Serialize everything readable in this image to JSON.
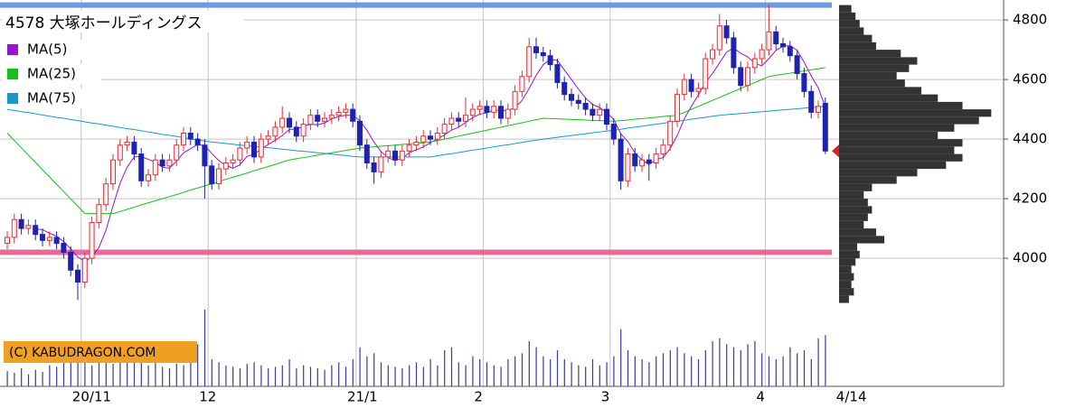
{
  "chart_data": {
    "type": "candlestick",
    "title": "4578 大塚ホールディングス",
    "copyright": "(C) KABUDRAGON.COM",
    "categories": [
      null,
      null,
      null,
      null,
      null,
      null,
      null,
      null,
      null,
      null,
      null,
      "20/11",
      null,
      null,
      null,
      null,
      null,
      null,
      null,
      null,
      null,
      null,
      null,
      null,
      null,
      null,
      null,
      null,
      null,
      "12",
      null,
      null,
      null,
      null,
      null,
      null,
      null,
      null,
      null,
      null,
      null,
      null,
      null,
      null,
      null,
      null,
      null,
      null,
      null,
      null,
      "21/1",
      null,
      null,
      null,
      null,
      null,
      null,
      null,
      null,
      null,
      null,
      null,
      null,
      null,
      null,
      null,
      null,
      null,
      "2",
      null,
      null,
      null,
      null,
      null,
      null,
      null,
      null,
      null,
      null,
      null,
      null,
      null,
      null,
      null,
      null,
      null,
      "3",
      null,
      null,
      null,
      null,
      null,
      null,
      null,
      null,
      null,
      null,
      null,
      null,
      null,
      null,
      null,
      null,
      null,
      null,
      null,
      null,
      null,
      "4",
      null,
      null,
      null,
      null,
      null,
      null,
      null,
      "4/14"
    ],
    "open": [
      4050,
      4070,
      4130,
      4100,
      4110,
      4080,
      4060,
      4070,
      4050,
      4020,
      3960,
      3920,
      4000,
      4120,
      4180,
      4250,
      4330,
      4380,
      4390,
      4350,
      4260,
      4280,
      4330,
      4310,
      4330,
      4380,
      4420,
      4400,
      4380,
      4310,
      4250,
      4300,
      4320,
      4330,
      4370,
      4390,
      4340,
      4400,
      4410,
      4440,
      4470,
      4440,
      4410,
      4450,
      4480,
      4460,
      4470,
      4480,
      4490,
      4500,
      4460,
      4380,
      4320,
      4290,
      4340,
      4360,
      4330,
      4360,
      4380,
      4390,
      4410,
      4400,
      4420,
      4450,
      4470,
      4460,
      4480,
      4500,
      4510,
      4490,
      4510,
      4470,
      4500,
      4560,
      4610,
      4710,
      4690,
      4680,
      4650,
      4590,
      4550,
      4530,
      4520,
      4500,
      4480,
      4500,
      4450,
      4400,
      4260,
      4350,
      4310,
      4330,
      4320,
      4350,
      4380,
      4460,
      4550,
      4600,
      4560,
      4570,
      4670,
      4700,
      4780,
      4740,
      4640,
      4580,
      4640,
      4670,
      4700,
      4760,
      4720,
      4710,
      4680,
      4620,
      4560,
      4490,
      4520
    ],
    "high": [
      4090,
      4150,
      4150,
      4130,
      4130,
      4100,
      4090,
      4090,
      4070,
      4040,
      3980,
      4020,
      4140,
      4200,
      4270,
      4350,
      4400,
      4410,
      4410,
      4370,
      4300,
      4350,
      4350,
      4350,
      4400,
      4440,
      4440,
      4420,
      4400,
      4330,
      4320,
      4340,
      4350,
      4390,
      4410,
      4410,
      4420,
      4430,
      4460,
      4510,
      4490,
      4460,
      4470,
      4500,
      4500,
      4490,
      4500,
      4510,
      4520,
      4520,
      4480,
      4400,
      4340,
      4360,
      4380,
      4380,
      4380,
      4400,
      4410,
      4430,
      4430,
      4440,
      4470,
      4490,
      4490,
      4540,
      4520,
      4530,
      4530,
      4530,
      4530,
      4520,
      4580,
      4630,
      4740,
      4740,
      4710,
      4700,
      4670,
      4610,
      4570,
      4550,
      4540,
      4520,
      4520,
      4520,
      4470,
      4420,
      4370,
      4370,
      4350,
      4350,
      4370,
      4400,
      4480,
      4570,
      4620,
      4620,
      4590,
      4690,
      4720,
      4820,
      4800,
      4760,
      4660,
      4660,
      4690,
      4720,
      4850,
      4780,
      4740,
      4730,
      4700,
      4640,
      4580,
      4530,
      4540
    ],
    "low": [
      4030,
      4050,
      4080,
      4080,
      4060,
      4040,
      4040,
      4030,
      4000,
      3940,
      3860,
      3900,
      3980,
      4100,
      4160,
      4230,
      4310,
      4360,
      4330,
      4240,
      4240,
      4260,
      4290,
      4290,
      4310,
      4360,
      4380,
      4360,
      4200,
      4230,
      4230,
      4280,
      4300,
      4310,
      4350,
      4320,
      4320,
      4380,
      4390,
      4420,
      4420,
      4390,
      4390,
      4430,
      4440,
      4440,
      4450,
      4460,
      4470,
      4440,
      4360,
      4300,
      4250,
      4270,
      4320,
      4310,
      4310,
      4340,
      4360,
      4370,
      4380,
      4380,
      4400,
      4430,
      4440,
      4440,
      4460,
      4480,
      4470,
      4470,
      4450,
      4450,
      4480,
      4540,
      4590,
      4670,
      4660,
      4630,
      4570,
      4530,
      4510,
      4500,
      4480,
      4460,
      4460,
      4430,
      4380,
      4230,
      4240,
      4290,
      4290,
      4260,
      4300,
      4330,
      4360,
      4440,
      4530,
      4540,
      4540,
      4550,
      4650,
      4680,
      4720,
      4620,
      4560,
      4560,
      4620,
      4650,
      4680,
      4700,
      4690,
      4660,
      4600,
      4540,
      4470,
      4470,
      4350
    ],
    "close": [
      4070,
      4130,
      4100,
      4110,
      4080,
      4060,
      4070,
      4050,
      4020,
      3960,
      3920,
      4000,
      4120,
      4180,
      4250,
      4330,
      4380,
      4390,
      4350,
      4260,
      4280,
      4330,
      4310,
      4330,
      4380,
      4420,
      4400,
      4380,
      4310,
      4250,
      4300,
      4320,
      4330,
      4370,
      4390,
      4340,
      4400,
      4410,
      4440,
      4470,
      4440,
      4410,
      4450,
      4480,
      4460,
      4470,
      4480,
      4490,
      4500,
      4460,
      4380,
      4320,
      4290,
      4340,
      4360,
      4330,
      4360,
      4380,
      4390,
      4410,
      4400,
      4420,
      4450,
      4470,
      4460,
      4480,
      4500,
      4510,
      4490,
      4510,
      4470,
      4500,
      4560,
      4610,
      4710,
      4690,
      4680,
      4650,
      4590,
      4550,
      4530,
      4520,
      4500,
      4480,
      4500,
      4450,
      4400,
      4260,
      4350,
      4310,
      4330,
      4320,
      4350,
      4380,
      4460,
      4550,
      4600,
      4560,
      4570,
      4670,
      4700,
      4780,
      4740,
      4640,
      4580,
      4640,
      4670,
      4700,
      4760,
      4720,
      4710,
      4680,
      4620,
      4560,
      4490,
      4510,
      4360
    ],
    "up_color": "#e0303a",
    "down_color": "#1e22b0",
    "volume": [
      500,
      450,
      600,
      400,
      550,
      480,
      700,
      650,
      900,
      1100,
      800,
      1000,
      700,
      900,
      800,
      750,
      1000,
      1200,
      900,
      850,
      700,
      800,
      650,
      600,
      750,
      700,
      1200,
      1400,
      2550,
      900,
      800,
      700,
      650,
      600,
      750,
      800,
      700,
      600,
      650,
      700,
      900,
      600,
      700,
      650,
      600,
      550,
      700,
      800,
      650,
      900,
      1300,
      1000,
      1100,
      800,
      700,
      650,
      600,
      700,
      800,
      650,
      900,
      700,
      1200,
      1300,
      800,
      700,
      1000,
      900,
      800,
      700,
      650,
      900,
      1000,
      1100,
      1500,
      1300,
      1000,
      900,
      1200,
      900,
      800,
      700,
      650,
      900,
      700,
      800,
      1000,
      1900,
      1200,
      1000,
      900,
      800,
      1000,
      1100,
      1200,
      1300,
      1100,
      1000,
      900,
      1200,
      1500,
      1600,
      1400,
      1300,
      1200,
      1400,
      1500,
      1100,
      1000,
      900,
      1000,
      1300,
      1100,
      1200,
      900,
      1600,
      1700
    ],
    "volume_color": "#3a3aa0",
    "volume_lim": [
      0,
      3000
    ],
    "series": [
      {
        "name": "MA(5)",
        "color": "#9a14c8",
        "values": [
          null,
          null,
          null,
          null,
          4098,
          4096,
          4084,
          4074,
          4056,
          4032,
          4004,
          3990,
          4004,
          4036,
          4094,
          4176,
          4252,
          4306,
          4340,
          4342,
          4332,
          4322,
          4306,
          4302,
          4326,
          4354,
          4368,
          4382,
          4378,
          4352,
          4328,
          4312,
          4302,
          4314,
          4342,
          4350,
          4366,
          4382,
          4396,
          4412,
          4432,
          4434,
          4442,
          4450,
          4448,
          4454,
          4468,
          4476,
          4480,
          4480,
          4462,
          4430,
          4390,
          4358,
          4338,
          4328,
          4336,
          4354,
          4364,
          4374,
          4388,
          4400,
          4414,
          4430,
          4440,
          4456,
          4472,
          4484,
          4488,
          4498,
          4496,
          4496,
          4506,
          4530,
          4570,
          4614,
          4650,
          4668,
          4664,
          4632,
          4600,
          4568,
          4538,
          4516,
          4506,
          4490,
          4466,
          4418,
          4392,
          4354,
          4330,
          4314,
          4332,
          4338,
          4368,
          4412,
          4468,
          4510,
          4548,
          4590,
          4620,
          4656,
          4692,
          4706,
          4688,
          4676,
          4654,
          4646,
          4670,
          4698,
          4712,
          4714,
          4698,
          4658,
          4612,
          4572,
          4508
        ]
      },
      {
        "name": "MA(25)",
        "color": "#18c018",
        "values": [
          4420,
          4395,
          4371,
          4346,
          4322,
          4297,
          4273,
          4248,
          4224,
          4199,
          4175,
          4150,
          4150,
          4150,
          4150,
          4150,
          4157,
          4164,
          4171,
          4179,
          4186,
          4193,
          4200,
          4207,
          4214,
          4221,
          4229,
          4236,
          4243,
          4250,
          4257,
          4265,
          4272,
          4279,
          4286,
          4294,
          4301,
          4308,
          4315,
          4323,
          4330,
          4334,
          4338,
          4342,
          4346,
          4350,
          4354,
          4358,
          4362,
          4366,
          4370,
          4372,
          4374,
          4376,
          4378,
          4380,
          4382,
          4384,
          4386,
          4388,
          4390,
          4395,
          4400,
          4405,
          4410,
          4415,
          4420,
          4425,
          4430,
          4435,
          4440,
          4445,
          4450,
          4455,
          4460,
          4465,
          4470,
          4469,
          4468,
          4467,
          4466,
          4465,
          4464,
          4463,
          4462,
          4461,
          4460,
          4462,
          4464,
          4467,
          4469,
          4471,
          4473,
          4476,
          4478,
          4480,
          4490,
          4500,
          4510,
          4520,
          4530,
          4540,
          4550,
          4560,
          4570,
          4580,
          4590,
          4600,
          4610,
          4614,
          4618,
          4621,
          4625,
          4629,
          4633,
          4636,
          4640
        ]
      },
      {
        "name": "MA(75)",
        "color": "#1898c8",
        "values": [
          4500,
          4496,
          4492,
          4489,
          4485,
          4481,
          4477,
          4473,
          4470,
          4466,
          4462,
          4458,
          4454,
          4451,
          4447,
          4443,
          4439,
          4435,
          4432,
          4428,
          4424,
          4420,
          4416,
          4413,
          4409,
          4405,
          4401,
          4397,
          4394,
          4390,
          4388,
          4385,
          4383,
          4380,
          4378,
          4376,
          4373,
          4371,
          4369,
          4366,
          4364,
          4361,
          4359,
          4357,
          4354,
          4352,
          4350,
          4347,
          4345,
          4342,
          4340,
          4340,
          4340,
          4340,
          4340,
          4340,
          4340,
          4340,
          4340,
          4340,
          4340,
          4344,
          4348,
          4351,
          4355,
          4359,
          4363,
          4366,
          4370,
          4374,
          4378,
          4381,
          4385,
          4389,
          4393,
          4396,
          4400,
          4403,
          4406,
          4409,
          4412,
          4415,
          4418,
          4421,
          4424,
          4427,
          4430,
          4433,
          4437,
          4440,
          4443,
          4447,
          4450,
          4453,
          4457,
          4460,
          4463,
          4467,
          4470,
          4473,
          4477,
          4480,
          4482,
          4484,
          4486,
          4488,
          4490,
          4492,
          4494,
          4496,
          4498,
          4500,
          4502,
          4504,
          4506,
          4508,
          4510
        ]
      }
    ],
    "levels": [
      {
        "value": 4850,
        "color": "#6a9ae0"
      },
      {
        "value": 4020,
        "color": "#e86a9a"
      }
    ],
    "volume_profile": {
      "color": "#333333",
      "bins": [
        3850,
        3875,
        3900,
        3925,
        3950,
        3975,
        4000,
        4025,
        4050,
        4075,
        4100,
        4125,
        4150,
        4175,
        4200,
        4225,
        4250,
        4275,
        4300,
        4325,
        4350,
        4375,
        4400,
        4425,
        4450,
        4475,
        4500,
        4525,
        4550,
        4575,
        4600,
        4625,
        4650,
        4675,
        4700,
        4725,
        4750,
        4775,
        4800,
        4825,
        4850
      ],
      "values": [
        12,
        18,
        15,
        18,
        15,
        20,
        25,
        22,
        55,
        45,
        30,
        35,
        40,
        35,
        30,
        40,
        70,
        95,
        130,
        150,
        140,
        150,
        120,
        140,
        170,
        185,
        150,
        120,
        100,
        80,
        70,
        85,
        95,
        75,
        45,
        40,
        30,
        25,
        20,
        15
      ],
      "xlim": [
        0,
        200
      ]
    },
    "marker_color": "#e02020",
    "ylim": [
      3570,
      4867
    ],
    "yticks": [
      4000,
      4200,
      4400,
      4600,
      4800
    ],
    "grid": true
  }
}
